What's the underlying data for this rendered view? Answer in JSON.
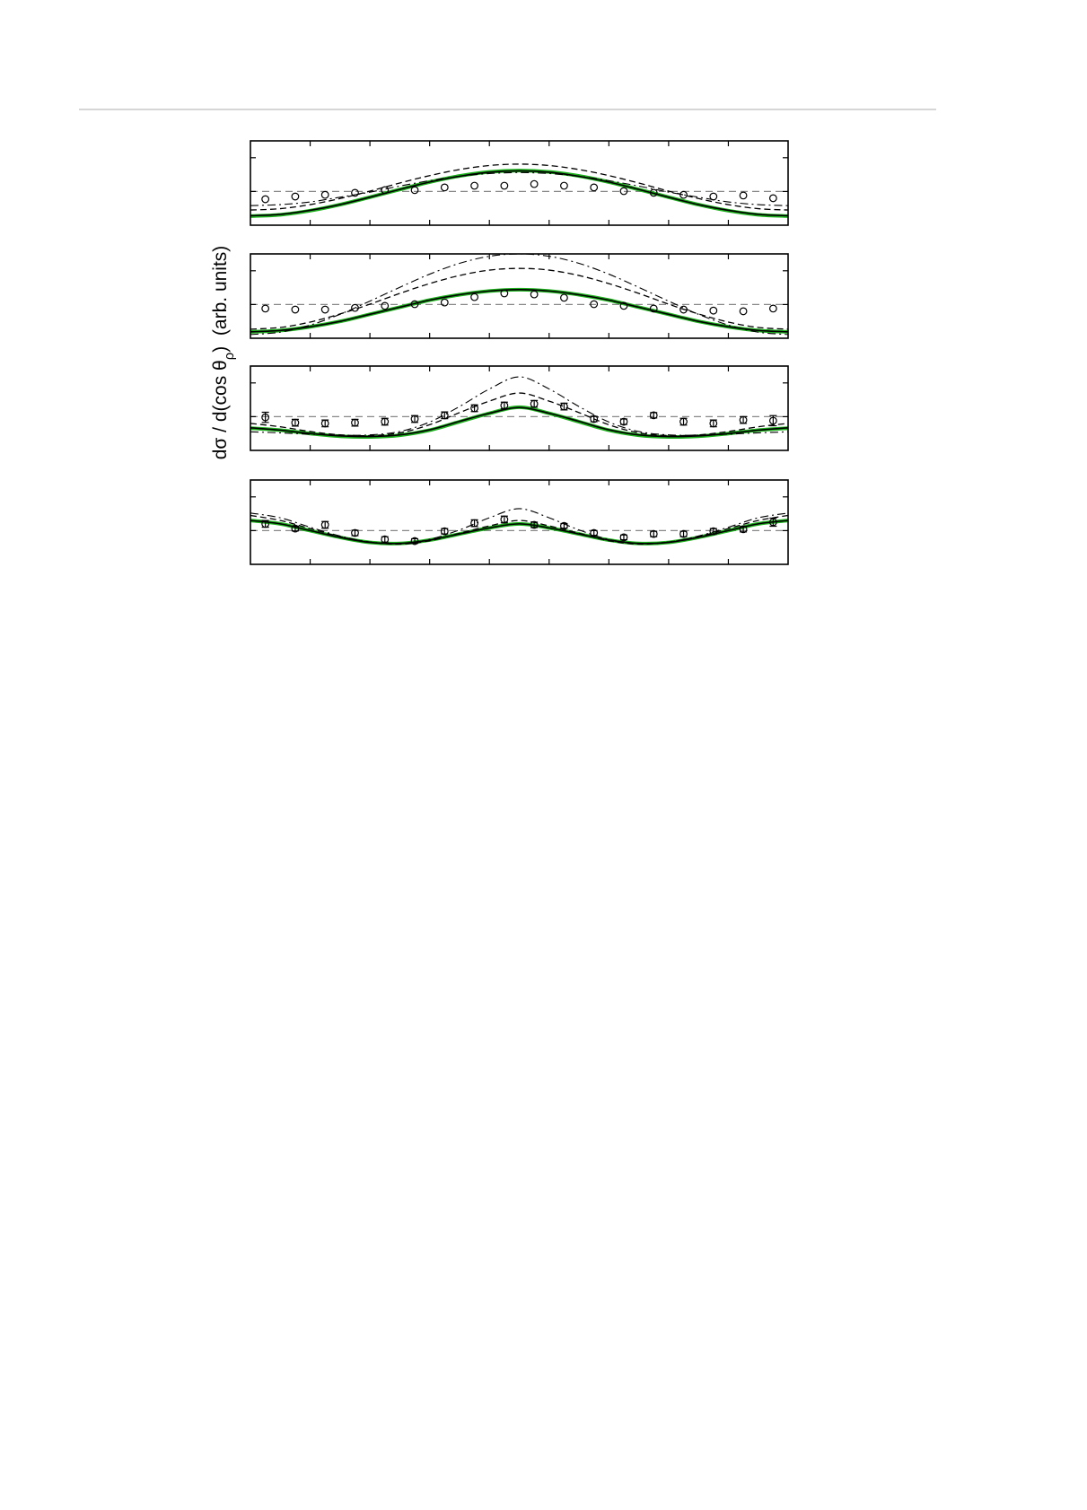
{
  "figure": {
    "ylabel": {
      "text": "dσ / d(cos θ",
      "sub": "ρ",
      "end": ")  (arb. units)"
    }
  },
  "chart_data": [
    {
      "type": "line",
      "xlim": [
        0,
        9
      ],
      "xticks": [
        1,
        2,
        3,
        4,
        5,
        6,
        7,
        8
      ],
      "ylim": [
        0,
        2.5
      ],
      "yticks": [
        1,
        2
      ],
      "reference": 1,
      "x": [
        0,
        0.5,
        1,
        1.5,
        2,
        2.5,
        3,
        3.5,
        4,
        4.5,
        5,
        5.5,
        6,
        6.5,
        7,
        7.5,
        8,
        8.5,
        9
      ],
      "series": [
        {
          "color": "#1fb21f",
          "style": "solid",
          "width": 4,
          "values": [
            0.27,
            0.31,
            0.43,
            0.61,
            0.83,
            1.06,
            1.28,
            1.46,
            1.58,
            1.62,
            1.58,
            1.46,
            1.28,
            1.06,
            0.83,
            0.61,
            0.43,
            0.31,
            0.27
          ]
        },
        {
          "color": "#000000",
          "style": "solid",
          "width": 1.6,
          "values": [
            0.28,
            0.32,
            0.44,
            0.61,
            0.83,
            1.06,
            1.28,
            1.45,
            1.57,
            1.61,
            1.57,
            1.45,
            1.28,
            1.06,
            0.83,
            0.61,
            0.44,
            0.32,
            0.28
          ]
        },
        {
          "color": "#000000",
          "style": "dashed",
          "width": 1.3,
          "values": [
            0.45,
            0.49,
            0.61,
            0.79,
            1.01,
            1.25,
            1.47,
            1.65,
            1.77,
            1.81,
            1.77,
            1.65,
            1.47,
            1.25,
            1.01,
            0.79,
            0.61,
            0.49,
            0.45
          ]
        },
        {
          "color": "#000000",
          "style": "dashdot",
          "width": 1.1,
          "values": [
            0.58,
            0.61,
            0.69,
            0.83,
            0.98,
            1.16,
            1.32,
            1.45,
            1.53,
            1.56,
            1.53,
            1.45,
            1.32,
            1.16,
            0.98,
            0.83,
            0.69,
            0.61,
            0.58
          ]
        }
      ],
      "points": {
        "x": [
          0.25,
          0.75,
          1.25,
          1.75,
          2.25,
          2.75,
          3.25,
          3.75,
          4.25,
          4.75,
          5.25,
          5.75,
          6.25,
          6.75,
          7.25,
          7.75,
          8.25,
          8.75
        ],
        "values": [
          0.77,
          0.85,
          0.9,
          0.96,
          1.04,
          1.04,
          1.12,
          1.17,
          1.17,
          1.22,
          1.17,
          1.12,
          1.01,
          0.96,
          0.9,
          0.85,
          0.88,
          0.8
        ]
      }
    },
    {
      "type": "line",
      "xlim": [
        0,
        9
      ],
      "xticks": [
        1,
        2,
        3,
        4,
        5,
        6,
        7,
        8
      ],
      "ylim": [
        0,
        2.5
      ],
      "yticks": [
        1,
        2
      ],
      "reference": 1,
      "x": [
        0,
        0.5,
        1,
        1.5,
        2,
        2.5,
        3,
        3.5,
        4,
        4.5,
        5,
        5.5,
        6,
        6.5,
        7,
        7.5,
        8,
        8.5,
        9
      ],
      "series": [
        {
          "color": "#1fb21f",
          "style": "solid",
          "width": 4,
          "values": [
            0.19,
            0.23,
            0.34,
            0.5,
            0.71,
            0.92,
            1.13,
            1.29,
            1.4,
            1.44,
            1.4,
            1.29,
            1.13,
            0.92,
            0.71,
            0.5,
            0.34,
            0.23,
            0.19
          ]
        },
        {
          "color": "#000000",
          "style": "solid",
          "width": 1.6,
          "values": [
            0.19,
            0.23,
            0.34,
            0.5,
            0.71,
            0.92,
            1.13,
            1.29,
            1.4,
            1.44,
            1.4,
            1.29,
            1.13,
            0.92,
            0.71,
            0.5,
            0.34,
            0.23,
            0.19
          ]
        },
        {
          "color": "#000000",
          "style": "dashed",
          "width": 1.3,
          "values": [
            0.27,
            0.32,
            0.48,
            0.72,
            1.01,
            1.33,
            1.62,
            1.86,
            2.02,
            2.07,
            2.02,
            1.86,
            1.62,
            1.33,
            1.01,
            0.72,
            0.48,
            0.32,
            0.27
          ]
        },
        {
          "color": "#000000",
          "style": "dashdot",
          "width": 1.1,
          "values": [
            0.11,
            0.18,
            0.39,
            0.71,
            1.1,
            1.51,
            1.9,
            2.22,
            2.43,
            2.5,
            2.43,
            2.22,
            1.9,
            1.51,
            1.1,
            0.71,
            0.39,
            0.18,
            0.11
          ]
        }
      ],
      "points": {
        "x": [
          0.25,
          0.75,
          1.25,
          1.75,
          2.25,
          2.75,
          3.25,
          3.75,
          4.25,
          4.75,
          5.25,
          5.75,
          6.25,
          6.75,
          7.25,
          7.75,
          8.25,
          8.75
        ],
        "values": [
          0.88,
          0.85,
          0.85,
          0.9,
          0.96,
          1.01,
          1.06,
          1.22,
          1.33,
          1.3,
          1.2,
          1.01,
          0.96,
          0.88,
          0.85,
          0.82,
          0.8,
          0.88
        ]
      }
    },
    {
      "type": "line",
      "xlim": [
        0,
        9
      ],
      "xticks": [
        1,
        2,
        3,
        4,
        5,
        6,
        7,
        8
      ],
      "ylim": [
        0,
        2.5
      ],
      "yticks": [
        1,
        2
      ],
      "reference": 1,
      "x": [
        0,
        0.5,
        1,
        1.5,
        2,
        2.5,
        3,
        3.5,
        4,
        4.5,
        5,
        5.5,
        6,
        6.5,
        7,
        7.5,
        8,
        8.5,
        9
      ],
      "series": [
        {
          "color": "#1fb21f",
          "style": "solid",
          "width": 4,
          "values": [
            0.66,
            0.6,
            0.5,
            0.42,
            0.4,
            0.45,
            0.6,
            0.85,
            1.1,
            1.28,
            1.1,
            0.85,
            0.6,
            0.45,
            0.4,
            0.42,
            0.5,
            0.6,
            0.66
          ]
        },
        {
          "color": "#000000",
          "style": "solid",
          "width": 1.6,
          "values": [
            0.67,
            0.6,
            0.5,
            0.43,
            0.41,
            0.46,
            0.61,
            0.86,
            1.1,
            1.27,
            1.1,
            0.86,
            0.61,
            0.46,
            0.41,
            0.43,
            0.5,
            0.6,
            0.67
          ]
        },
        {
          "color": "#000000",
          "style": "dashed",
          "width": 1.3,
          "values": [
            0.8,
            0.7,
            0.56,
            0.46,
            0.44,
            0.52,
            0.76,
            1.12,
            1.46,
            1.7,
            1.46,
            1.12,
            0.76,
            0.52,
            0.44,
            0.46,
            0.56,
            0.7,
            0.8
          ]
        },
        {
          "color": "#000000",
          "style": "dashdot",
          "width": 1.1,
          "values": [
            0.55,
            0.52,
            0.48,
            0.45,
            0.46,
            0.56,
            0.84,
            1.3,
            1.82,
            2.18,
            1.82,
            1.3,
            0.84,
            0.56,
            0.46,
            0.45,
            0.48,
            0.52,
            0.55
          ]
        }
      ],
      "points": {
        "x": [
          0.25,
          0.75,
          1.25,
          1.75,
          2.25,
          2.75,
          3.25,
          3.75,
          4.25,
          4.75,
          5.25,
          5.75,
          6.25,
          6.75,
          7.25,
          7.75,
          8.25,
          8.75
        ],
        "values": [
          0.98,
          0.82,
          0.8,
          0.82,
          0.85,
          0.93,
          1.04,
          1.25,
          1.33,
          1.38,
          1.3,
          0.93,
          0.85,
          1.04,
          0.85,
          0.8,
          0.9,
          0.88
        ],
        "errors": [
          0.15,
          0.1,
          0.1,
          0.1,
          0.1,
          0.1,
          0.1,
          0.1,
          0.1,
          0.1,
          0.1,
          0.08,
          0.08,
          0.08,
          0.1,
          0.1,
          0.1,
          0.15
        ]
      }
    },
    {
      "type": "line",
      "xlim": [
        0,
        9
      ],
      "xticks": [
        1,
        2,
        3,
        4,
        5,
        6,
        7,
        8
      ],
      "ylim": [
        0,
        2.5
      ],
      "yticks": [
        1,
        2
      ],
      "reference": 1,
      "x": [
        0,
        0.5,
        1,
        1.5,
        2,
        2.5,
        3,
        3.5,
        4,
        4.5,
        5,
        5.5,
        6,
        6.5,
        7,
        7.5,
        8,
        8.5,
        9
      ],
      "series": [
        {
          "color": "#1fb21f",
          "style": "solid",
          "width": 4,
          "values": [
            1.3,
            1.2,
            1.0,
            0.8,
            0.65,
            0.62,
            0.72,
            0.9,
            1.08,
            1.2,
            1.08,
            0.9,
            0.72,
            0.62,
            0.65,
            0.8,
            1.0,
            1.2,
            1.3
          ]
        },
        {
          "color": "#000000",
          "style": "solid",
          "width": 1.6,
          "values": [
            1.3,
            1.2,
            1.0,
            0.8,
            0.65,
            0.62,
            0.72,
            0.9,
            1.08,
            1.2,
            1.08,
            0.9,
            0.72,
            0.62,
            0.65,
            0.8,
            1.0,
            1.2,
            1.3
          ]
        },
        {
          "color": "#000000",
          "style": "dashed",
          "width": 1.3,
          "values": [
            1.45,
            1.3,
            1.06,
            0.82,
            0.66,
            0.6,
            0.7,
            0.92,
            1.14,
            1.3,
            1.14,
            0.92,
            0.7,
            0.6,
            0.66,
            0.82,
            1.06,
            1.3,
            1.45
          ]
        },
        {
          "color": "#000000",
          "style": "dashdot",
          "width": 1.1,
          "values": [
            1.52,
            1.38,
            1.1,
            0.84,
            0.66,
            0.62,
            0.74,
            1.02,
            1.38,
            1.65,
            1.38,
            1.02,
            0.74,
            0.62,
            0.66,
            0.84,
            1.1,
            1.38,
            1.52
          ]
        }
      ],
      "points": {
        "x": [
          0.25,
          0.75,
          1.25,
          1.75,
          2.25,
          2.75,
          3.25,
          3.75,
          4.25,
          4.75,
          5.25,
          5.75,
          6.25,
          6.75,
          7.25,
          7.75,
          8.25,
          8.75
        ],
        "values": [
          1.2,
          1.06,
          1.17,
          0.93,
          0.74,
          0.69,
          0.98,
          1.22,
          1.33,
          1.17,
          1.14,
          0.93,
          0.8,
          0.9,
          0.9,
          0.98,
          1.04,
          1.25
        ],
        "errors": [
          0.1,
          0.07,
          0.1,
          0.08,
          0.08,
          0.07,
          0.08,
          0.1,
          0.1,
          0.08,
          0.07,
          0.07,
          0.07,
          0.08,
          0.08,
          0.08,
          0.08,
          0.12
        ]
      }
    }
  ]
}
